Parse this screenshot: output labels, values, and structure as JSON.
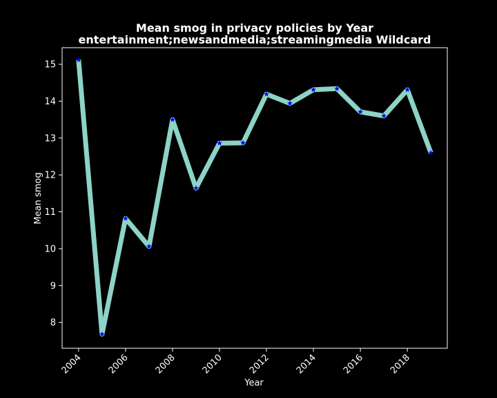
{
  "chart_data": {
    "type": "line",
    "title": "Mean smog in privacy policies by Year",
    "subtitle": "entertainment;newsandmedia;streamingmedia Wildcard",
    "xlabel": "Year",
    "ylabel": "Mean smog",
    "xlim": [
      2003.3,
      2019.7
    ],
    "ylim": [
      7.3,
      15.45
    ],
    "x_ticks": [
      "2004",
      "2006",
      "2008",
      "2010",
      "2012",
      "2014",
      "2016",
      "2018"
    ],
    "y_ticks": [
      "8",
      "9",
      "10",
      "11",
      "12",
      "13",
      "14",
      "15"
    ],
    "grid": false,
    "line_color": "#8dd3c7",
    "marker_color": "#0000ff",
    "marker": "star",
    "series": [
      {
        "x": [
          2004,
          2005,
          2006,
          2007,
          2008,
          2009,
          2010,
          2011,
          2012,
          2013,
          2014,
          2015,
          2016,
          2017,
          2018,
          2019
        ],
        "values": [
          15.12,
          7.68,
          10.82,
          10.06,
          13.5,
          11.64,
          12.86,
          12.87,
          14.19,
          13.94,
          14.31,
          14.34,
          13.71,
          13.6,
          14.31,
          12.6
        ]
      }
    ]
  }
}
